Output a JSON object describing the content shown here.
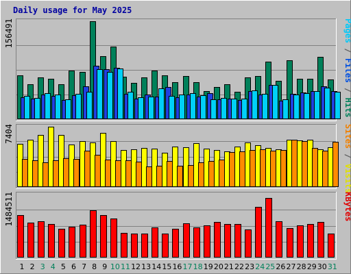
{
  "chart_data": {
    "type": "bar",
    "title": "Daily usage for May 2025",
    "categories": [
      "1",
      "2",
      "3",
      "4",
      "5",
      "6",
      "7",
      "8",
      "9",
      "10",
      "11",
      "12",
      "13",
      "14",
      "15",
      "16",
      "17",
      "18",
      "19",
      "20",
      "21",
      "22",
      "23",
      "24",
      "25",
      "26",
      "27",
      "28",
      "29",
      "30",
      "31"
    ],
    "weekend_days": [
      "3",
      "4",
      "10",
      "11",
      "17",
      "18",
      "24",
      "25",
      "31"
    ],
    "panels": [
      {
        "max_label": "156491",
        "ymax": 156491,
        "legend": [
          {
            "text": "Pages",
            "color": "#00c8f8"
          },
          {
            "text": " / ",
            "color": "#606060"
          },
          {
            "text": "Files",
            "color": "#0050e0"
          },
          {
            "text": " / ",
            "color": "#606060"
          },
          {
            "text": "Hits",
            "color": "#00805a"
          }
        ],
        "series": [
          {
            "name": "Hits",
            "color": "#00805a",
            "values": [
              69400,
              54900,
              66400,
              64300,
              55900,
              76900,
              74700,
              155500,
              100100,
              115600,
              67500,
              57400,
              66400,
              77600,
              69400,
              58900,
              68800,
              59100,
              44300,
              51600,
              55300,
              43400,
              66400,
              69000,
              91700,
              60800,
              93100,
              64300,
              63600,
              99300,
              63000
            ]
          },
          {
            "name": "Files",
            "color": "#2040e0",
            "values": [
              35300,
              32500,
              39500,
              36700,
              30400,
              37500,
              52100,
              84700,
              79000,
              81400,
              40100,
              32200,
              39400,
              36200,
              51400,
              35000,
              39400,
              35500,
              41000,
              31000,
              32200,
              30800,
              44300,
              38600,
              54300,
              29200,
              40300,
              41900,
              44300,
              52100,
              44700
            ]
          },
          {
            "name": "Pages",
            "color": "#00d0f8",
            "values": [
              37000,
              33300,
              41300,
              38700,
              31600,
              40300,
              43300,
              79800,
              75400,
              80100,
              43500,
              34300,
              35600,
              49000,
              36700,
              39600,
              41800,
              37500,
              31500,
              33600,
              32500,
              32800,
              46000,
              40300,
              53800,
              31000,
              39000,
              41800,
              45000,
              49700,
              43900
            ]
          }
        ]
      },
      {
        "max_label": "7404",
        "ymax": 7404,
        "legend": [
          {
            "text": "Sites",
            "color": "#f08000"
          },
          {
            "text": " / ",
            "color": "#606060"
          },
          {
            "text": "Visits",
            "color": "#e0e000"
          }
        ],
        "series": [
          {
            "name": "Visits",
            "color": "#ffff00",
            "values": [
              5230,
              5780,
              6300,
              7300,
              6350,
              5150,
              5600,
              5380,
              6540,
              5600,
              4530,
              4550,
              4730,
              4680,
              4160,
              4940,
              4830,
              5350,
              4690,
              4520,
              4340,
              4940,
              5380,
              5080,
              4730,
              4570,
              5780,
              5630,
              5780,
              4610,
              4850
            ]
          },
          {
            "name": "Sites",
            "color": "#ff8c00",
            "values": [
              3450,
              3240,
              2980,
              3240,
              3530,
              3380,
              4410,
              3930,
              3350,
              3260,
              3210,
              3060,
              2510,
              2560,
              3120,
              2580,
              2680,
              2980,
              3120,
              3330,
              4220,
              4330,
              4480,
              4560,
              4380,
              4480,
              5740,
              5610,
              4780,
              4380,
              5460
            ]
          }
        ]
      },
      {
        "max_label": "1484511",
        "ymax": 1484511,
        "legend": [
          {
            "text": "KBytes",
            "color": "#e00000"
          }
        ],
        "series": [
          {
            "name": "KBytes",
            "color": "#ff0000",
            "values": [
              995000,
              810000,
              842000,
              789000,
              678000,
              722000,
              762000,
              1097000,
              994000,
              915000,
              567000,
              558000,
              558000,
              700000,
              551000,
              663000,
              801000,
              698000,
              743000,
              837000,
              789000,
              789000,
              656000,
              1189000,
              1389000,
              842000,
              683000,
              746000,
              775000,
              835000,
              564000
            ]
          }
        ]
      }
    ]
  }
}
